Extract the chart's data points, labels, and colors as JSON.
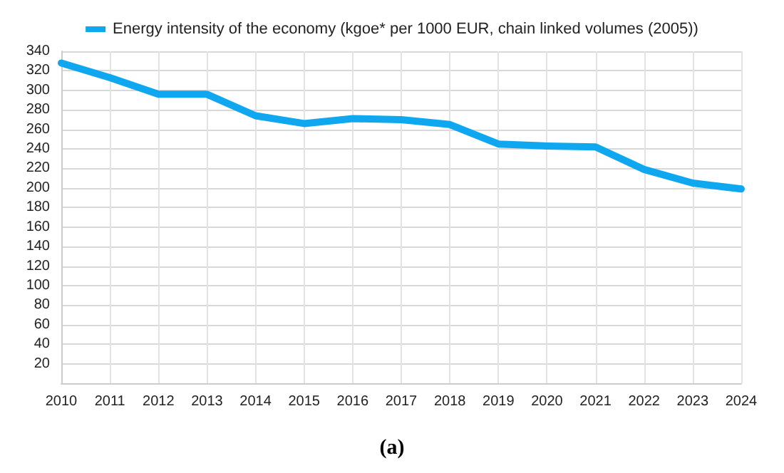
{
  "chart_data": {
    "type": "line",
    "categories": [
      "2010",
      "2011",
      "2012",
      "2013",
      "2014",
      "2015",
      "2016",
      "2017",
      "2018",
      "2019",
      "2020",
      "2021",
      "2022",
      "2023",
      "2024"
    ],
    "series": [
      {
        "name": "Energy intensity of the economy (kgoe* per 1000 EUR, chain linked volumes (2005))",
        "color": "#0fa8f0",
        "values": [
          328,
          313,
          296,
          296,
          274,
          266,
          271,
          270,
          265,
          245,
          243,
          242,
          219,
          205,
          199
        ]
      }
    ],
    "ylim": [
      0,
      340
    ],
    "yticks": [
      {
        "value": 0,
        "label": null
      },
      20,
      40,
      60,
      80,
      100,
      120,
      140,
      160,
      180,
      200,
      220,
      240,
      260,
      280,
      300,
      320,
      340
    ],
    "grid": true,
    "legend": "top",
    "marker": "none",
    "line_style": "solid",
    "annotations": [
      "(a)"
    ]
  }
}
